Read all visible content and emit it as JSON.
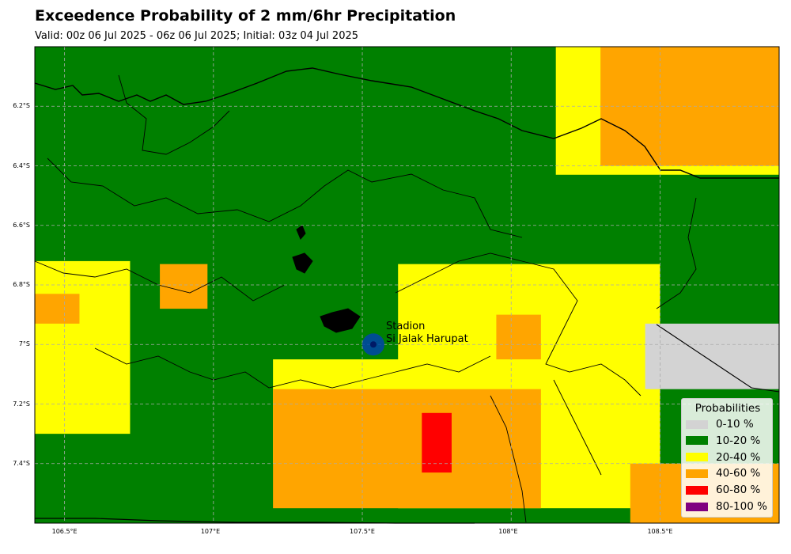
{
  "title": "Exceedence Probability of 2 mm/6hr Precipitation",
  "subtitle": "Valid: 00z 06 Jul 2025 - 06z 06 Jul 2025; Initial: 03z 04 Jul 2025",
  "station": {
    "line1": "Stadion",
    "line2": "Si Jalak Harupat",
    "lon": 107.537,
    "lat": -7.0
  },
  "axes": {
    "lon_range": [
      106.4,
      108.9
    ],
    "lat_range": [
      -7.6,
      -6.0
    ],
    "x_ticks": [
      {
        "value": 106.5,
        "label": "106.5°E"
      },
      {
        "value": 107.0,
        "label": "107°E"
      },
      {
        "value": 107.5,
        "label": "107.5°E"
      },
      {
        "value": 108.0,
        "label": "108°E"
      },
      {
        "value": 108.5,
        "label": "108.5°E"
      }
    ],
    "y_ticks": [
      {
        "value": -6.2,
        "label": "6.2°S"
      },
      {
        "value": -6.4,
        "label": "6.4°S"
      },
      {
        "value": -6.6,
        "label": "6.6°S"
      },
      {
        "value": -6.8,
        "label": "6.8°S"
      },
      {
        "value": -7.0,
        "label": "7°S"
      },
      {
        "value": -7.2,
        "label": "7.2°S"
      },
      {
        "value": -7.4,
        "label": "7.4°S"
      }
    ],
    "gridlines": true
  },
  "legend": {
    "title": "Probabilities",
    "placement": "lower-right",
    "items": [
      {
        "label": "0-10 %",
        "color": "#d3d3d3"
      },
      {
        "label": "10-20 %",
        "color": "#008000"
      },
      {
        "label": "20-40 %",
        "color": "#ffff00"
      },
      {
        "label": "40-60 %",
        "color": "#ffa500"
      },
      {
        "label": "60-80 %",
        "color": "#ff0000"
      },
      {
        "label": "80-100 %",
        "color": "#800080"
      }
    ]
  },
  "probability_field": {
    "base_class": 1,
    "class_regions": [
      {
        "class": 2,
        "lon": [
          108.15,
          108.9
        ],
        "lat": [
          -6.43,
          -6.0
        ]
      },
      {
        "class": 3,
        "lon": [
          108.3,
          108.9
        ],
        "lat": [
          -6.4,
          -6.0
        ]
      },
      {
        "class": 2,
        "lon": [
          106.4,
          106.72
        ],
        "lat": [
          -7.3,
          -6.72
        ]
      },
      {
        "class": 3,
        "lon": [
          106.4,
          106.55
        ],
        "lat": [
          -6.93,
          -6.83
        ]
      },
      {
        "class": 3,
        "lon": [
          106.82,
          106.98
        ],
        "lat": [
          -6.88,
          -6.73
        ]
      },
      {
        "class": 2,
        "lon": [
          107.62,
          108.5
        ],
        "lat": [
          -7.55,
          -6.73
        ]
      },
      {
        "class": 2,
        "lon": [
          107.2,
          107.65
        ],
        "lat": [
          -7.4,
          -7.05
        ]
      },
      {
        "class": 3,
        "lon": [
          107.2,
          108.1
        ],
        "lat": [
          -7.55,
          -7.15
        ]
      },
      {
        "class": 3,
        "lon": [
          108.4,
          108.9
        ],
        "lat": [
          -7.6,
          -7.4
        ]
      },
      {
        "class": 3,
        "lon": [
          107.95,
          108.1
        ],
        "lat": [
          -7.05,
          -6.9
        ]
      },
      {
        "class": 4,
        "lon": [
          107.7,
          107.8
        ],
        "lat": [
          -7.43,
          -7.23
        ]
      },
      {
        "class": 0,
        "lon": [
          108.45,
          108.9
        ],
        "lat": [
          -7.15,
          -6.93
        ]
      }
    ]
  }
}
